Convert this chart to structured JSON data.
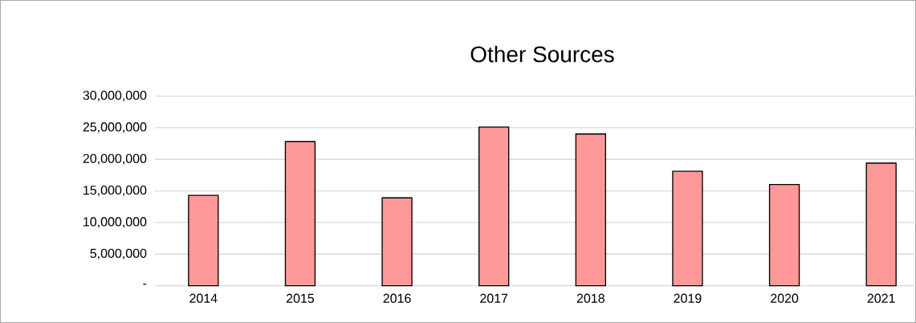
{
  "chart_data": {
    "type": "bar",
    "title": "Other Sources",
    "categories": [
      "2014",
      "2015",
      "2016",
      "2017",
      "2018",
      "2019",
      "2020",
      "2021"
    ],
    "values": [
      14300000,
      22800000,
      13900000,
      25100000,
      24000000,
      18100000,
      16000000,
      19400000
    ],
    "color": "#ff9999",
    "ylim": [
      0,
      30000000
    ],
    "yticks": [
      {
        "value": 0,
        "label": "-"
      },
      {
        "value": 5000000,
        "label": "5,000,000"
      },
      {
        "value": 10000000,
        "label": "10,000,000"
      },
      {
        "value": 15000000,
        "label": "15,000,000"
      },
      {
        "value": 20000000,
        "label": "20,000,000"
      },
      {
        "value": 25000000,
        "label": "25,000,000"
      },
      {
        "value": 30000000,
        "label": "30,000,000"
      }
    ],
    "grid": "y"
  }
}
